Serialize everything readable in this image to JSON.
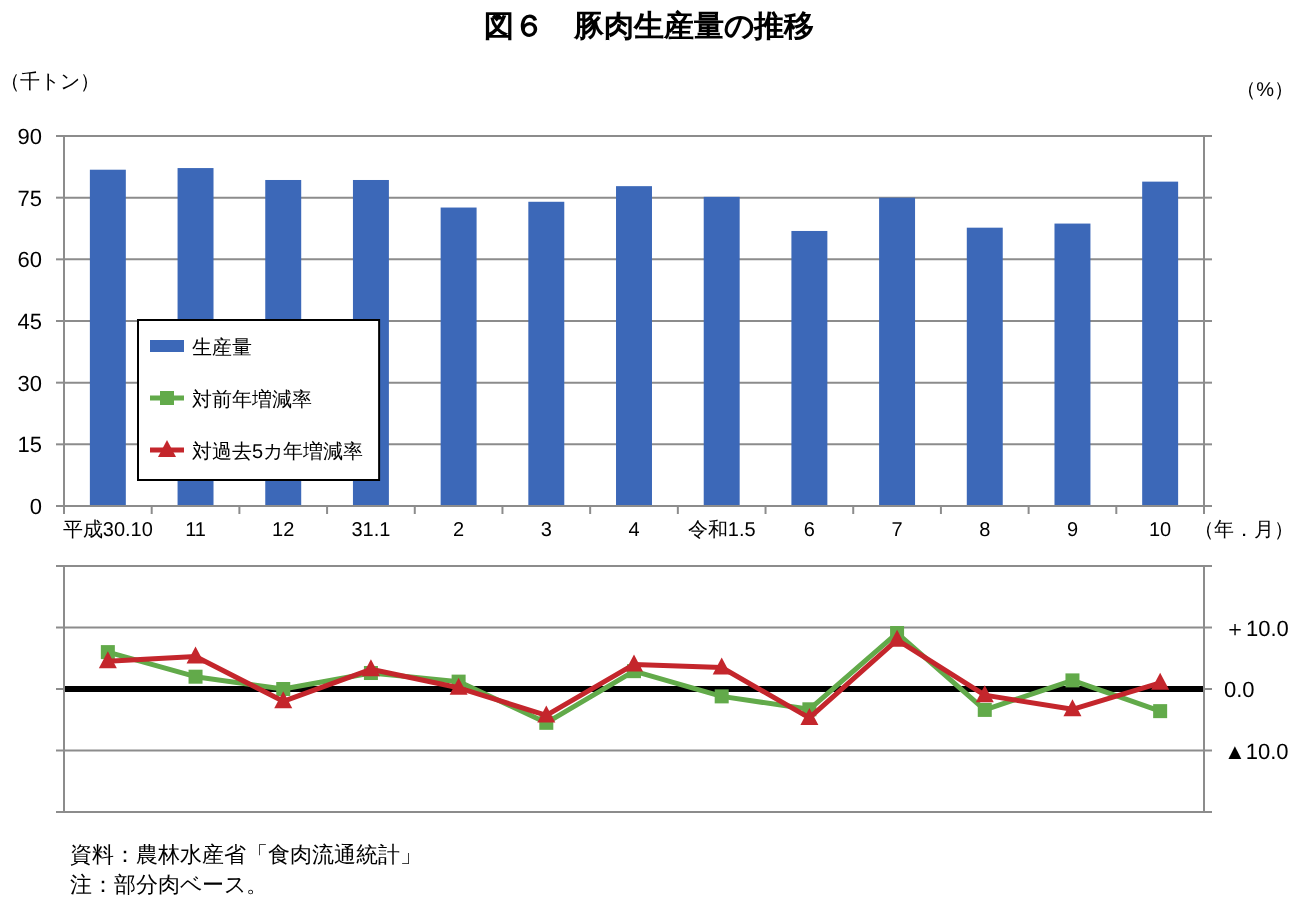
{
  "chart_data": [
    {
      "type": "bar",
      "title": "図６　豚肉生産量の推移",
      "ylabel": "（千トン）",
      "xlabel": "（年．月）",
      "categories": [
        "平成30.10",
        "11",
        "12",
        "31.1",
        "2",
        "3",
        "4",
        "令和1.5",
        "6",
        "7",
        "8",
        "9",
        "10"
      ],
      "series": [
        {
          "name": "生産量",
          "color": "#3c68b8",
          "values": [
            81.8,
            82.2,
            79.3,
            79.3,
            72.6,
            74.0,
            77.8,
            75.2,
            66.9,
            75.0,
            67.7,
            68.7,
            78.9
          ]
        }
      ],
      "ylim": [
        0,
        90
      ],
      "yticks": [
        0,
        15,
        30,
        45,
        60,
        75,
        90
      ],
      "grid": "y",
      "legend": "bottom left",
      "annotations": [
        "（%）"
      ]
    },
    {
      "type": "line",
      "categories": [
        null,
        null,
        null,
        null,
        null,
        null,
        null,
        null,
        null,
        null,
        null,
        null,
        null
      ],
      "series": [
        {
          "name": "対前年増減率",
          "color": "#62aa4a",
          "marker": "square",
          "values": [
            6.0,
            2.0,
            0.0,
            2.6,
            1.2,
            -5.5,
            2.9,
            -1.2,
            -3.3,
            9.1,
            -3.4,
            1.4,
            -3.6
          ]
        },
        {
          "name": "対過去5カ年増減率",
          "color": "#c4262c",
          "marker": "triangle",
          "values": [
            4.5,
            5.3,
            -2.0,
            3.2,
            0.2,
            -4.3,
            4.0,
            3.5,
            -4.7,
            8.0,
            -1.0,
            -3.3,
            1.0
          ]
        }
      ],
      "ylim": [
        -20,
        20
      ],
      "yticks": [
        {
          "value": 20,
          "label": null
        },
        {
          "value": 10,
          "label": "＋10.0"
        },
        {
          "value": 0,
          "label": "0.0"
        },
        {
          "value": -10,
          "label": "▲10.0"
        },
        {
          "value": -20,
          "label": null
        }
      ],
      "grid": "y",
      "ref_lines": [
        {
          "axis": "y",
          "value": 0,
          "color": "#000000"
        }
      ],
      "legend": "top left",
      "annotations": [
        "資料：農林水産省「食肉流通統計」",
        "注：部分肉ベース。"
      ]
    }
  ]
}
